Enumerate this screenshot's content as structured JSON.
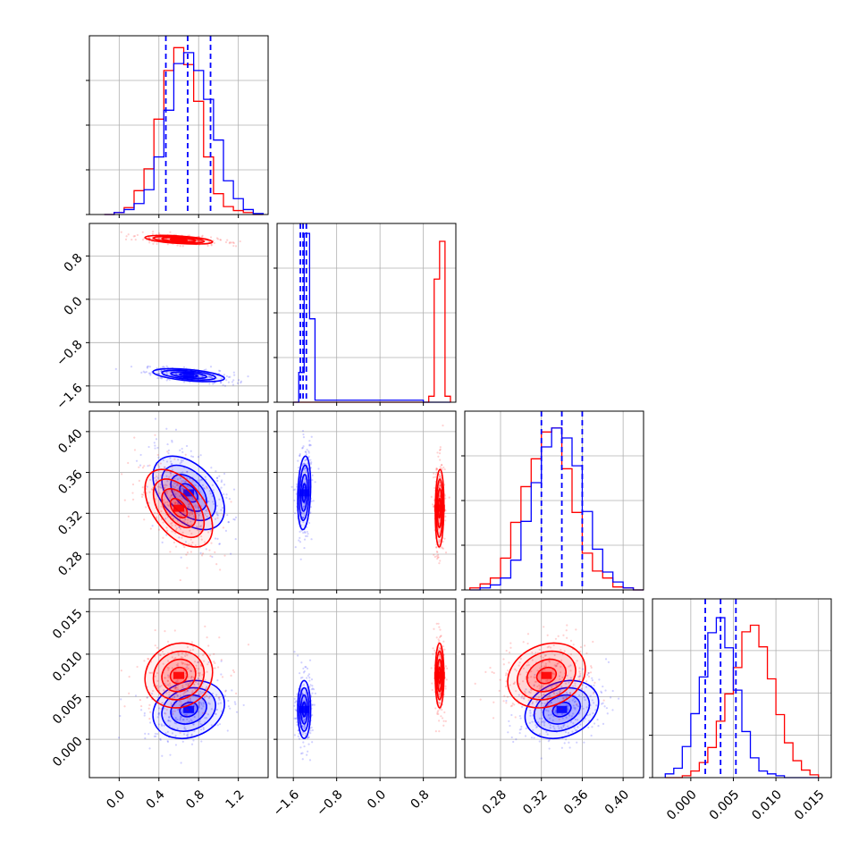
{
  "chart_data": {
    "type": "corner",
    "grid": true,
    "colors": {
      "run_a": "#0000ff",
      "run_b": "#ff0000",
      "quantile_lines": "#0000ff"
    },
    "parameters": [
      {
        "range": [
          -0.3,
          1.5
        ],
        "ticks": [
          0.0,
          0.4,
          0.8,
          1.2
        ],
        "tick_labels": [
          "0.0",
          "0.4",
          "0.8",
          "1.2"
        ]
      },
      {
        "range": [
          -1.9,
          1.4
        ],
        "ticks": [
          -1.6,
          -0.8,
          0.0,
          0.8
        ],
        "tick_labels": [
          "−1.6",
          "−0.8",
          "0.0",
          "0.8"
        ]
      },
      {
        "range": [
          0.245,
          0.42
        ],
        "ticks": [
          0.28,
          0.32,
          0.36,
          0.4
        ],
        "tick_labels": [
          "0.28",
          "0.32",
          "0.36",
          "0.40"
        ]
      },
      {
        "range": [
          -0.0045,
          0.0165
        ],
        "ticks": [
          0.0,
          0.005,
          0.01,
          0.015
        ],
        "tick_labels": [
          "0.000",
          "0.005",
          "0.010",
          "0.015"
        ]
      }
    ],
    "series": [
      {
        "color": "#0000ff",
        "mean": [
          0.7,
          -1.4,
          0.34,
          0.0035
        ],
        "std": [
          0.18,
          0.06,
          0.018,
          0.0017
        ],
        "quantiles": [
          [
            0.47,
            0.69,
            0.92
          ],
          [
            -1.47,
            -1.42,
            -1.36
          ],
          [
            0.32,
            0.34,
            0.36
          ],
          [
            0.0017,
            0.0035,
            0.0053
          ]
        ],
        "correlations": [
          [
            1,
            -0.5,
            -0.45,
            0.2
          ],
          [
            -0.5,
            1,
            0.2,
            0.0
          ],
          [
            -0.45,
            0.2,
            1,
            0.25
          ],
          [
            0.2,
            0.0,
            0.25,
            1
          ]
        ]
      },
      {
        "color": "#ff0000",
        "mean": [
          0.6,
          1.1,
          0.325,
          0.0075
        ],
        "std": [
          0.17,
          0.04,
          0.019,
          0.0019
        ],
        "quantiles": [],
        "correlations": [
          [
            1,
            -0.5,
            -0.5,
            0.1
          ],
          [
            -0.5,
            1,
            0.1,
            0.0
          ],
          [
            -0.5,
            0.1,
            1,
            0.2
          ],
          [
            0.1,
            0.0,
            0.2,
            1
          ]
        ]
      }
    ],
    "histograms": [
      {
        "param": 0,
        "ylim": [
          0,
          0.18
        ],
        "yticks": [
          0,
          0.045,
          0.09,
          0.135
        ],
        "bin_edges": [
          -0.15,
          -0.05,
          0.05,
          0.15,
          0.25,
          0.35,
          0.45,
          0.55,
          0.65,
          0.75,
          0.85,
          0.95,
          1.05,
          1.15,
          1.25,
          1.35,
          1.45
        ],
        "counts": [
          [
            0.0,
            0.002,
            0.005,
            0.011,
            0.025,
            0.058,
            0.105,
            0.152,
            0.163,
            0.145,
            0.116,
            0.075,
            0.034,
            0.016,
            0.005,
            0.001
          ],
          [
            0.0,
            0.002,
            0.007,
            0.024,
            0.046,
            0.096,
            0.145,
            0.168,
            0.151,
            0.114,
            0.058,
            0.021,
            0.008,
            0.004,
            0.002,
            0.0
          ]
        ]
      },
      {
        "param": 1,
        "ylim": [
          0,
          0.9
        ],
        "yticks": [
          0,
          0.225,
          0.45,
          0.675
        ],
        "bin_edges": [
          -1.6,
          -1.5,
          -1.4,
          -1.3,
          -1.2,
          0.8,
          0.9,
          1.0,
          1.1,
          1.2,
          1.3
        ],
        "counts": [
          [
            0.0,
            0.15,
            0.85,
            0.42,
            0.01,
            0.0,
            0.0,
            0.0,
            0.0,
            0.0
          ],
          [
            0.0,
            0.0,
            0.0,
            0.0,
            0.0,
            0.0,
            0.03,
            0.62,
            0.81,
            0.03
          ]
        ]
      },
      {
        "param": 2,
        "ylim": [
          0,
          0.18
        ],
        "yticks": [
          0,
          0.045,
          0.09,
          0.135
        ],
        "bin_edges": [
          0.25,
          0.26,
          0.27,
          0.28,
          0.29,
          0.3,
          0.31,
          0.32,
          0.33,
          0.34,
          0.35,
          0.36,
          0.37,
          0.38,
          0.39,
          0.4,
          0.41,
          0.42
        ],
        "counts": [
          [
            0.0,
            0.002,
            0.005,
            0.012,
            0.03,
            0.069,
            0.108,
            0.144,
            0.163,
            0.153,
            0.125,
            0.079,
            0.041,
            0.018,
            0.008,
            0.002,
            0.0
          ],
          [
            0.002,
            0.006,
            0.012,
            0.032,
            0.068,
            0.104,
            0.132,
            0.159,
            0.163,
            0.122,
            0.078,
            0.037,
            0.019,
            0.012,
            0.003,
            0.002,
            0.0
          ]
        ]
      },
      {
        "param": 3,
        "ylim": [
          0,
          0.19
        ],
        "yticks": [
          0,
          0.045,
          0.09,
          0.135
        ],
        "bin_edges": [
          -0.003,
          -0.002,
          -0.001,
          0.0,
          0.001,
          0.002,
          0.003,
          0.004,
          0.005,
          0.006,
          0.007,
          0.008,
          0.009,
          0.01,
          0.011,
          0.012,
          0.013,
          0.014,
          0.015
        ],
        "counts": [
          [
            0.004,
            0.01,
            0.033,
            0.068,
            0.107,
            0.154,
            0.17,
            0.138,
            0.093,
            0.049,
            0.021,
            0.007,
            0.004,
            0.002,
            0.0,
            0.0,
            0.0,
            0.0
          ],
          [
            0.0,
            0.0,
            0.002,
            0.007,
            0.016,
            0.032,
            0.06,
            0.089,
            0.117,
            0.155,
            0.162,
            0.139,
            0.105,
            0.067,
            0.037,
            0.018,
            0.008,
            0.003
          ]
        ]
      }
    ]
  }
}
